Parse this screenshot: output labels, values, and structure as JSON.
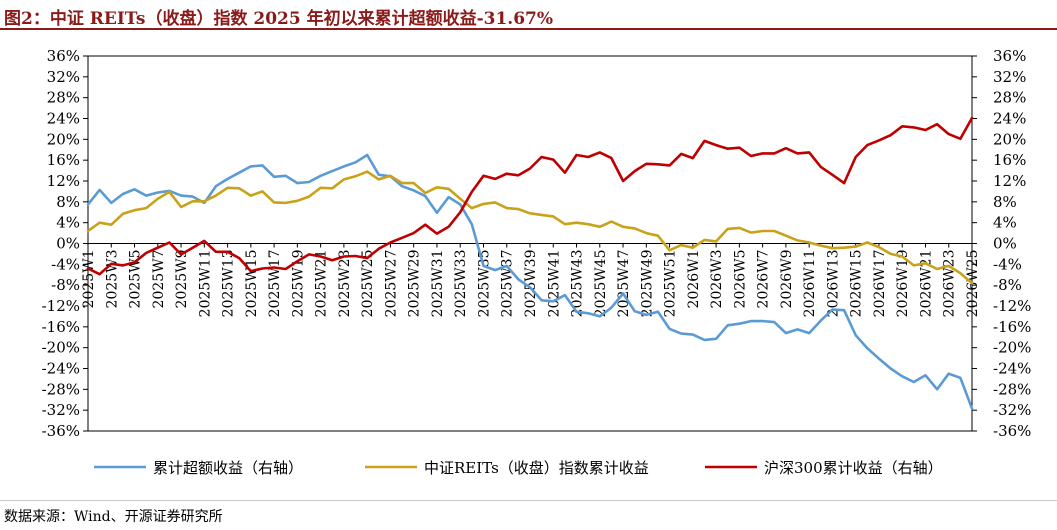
{
  "title": "图2：中证 REITs（收盘）指数 2025 年初以来累计超额收益-31.67%",
  "source": "数据来源：Wind、开源证券研究所",
  "chart_data": {
    "type": "line",
    "x": [
      "2025W1",
      "2025W2",
      "2025W3",
      "2025W4",
      "2025W5",
      "2025W6",
      "2025W7",
      "2025W8",
      "2025W9",
      "2025W10",
      "2025W11",
      "2025W12",
      "2025W13",
      "2025W14",
      "2025W15",
      "2025W16",
      "2025W17",
      "2025W18",
      "2025W19",
      "2025W20",
      "2025W21",
      "2025W22",
      "2025W23",
      "2025W24",
      "2025W25",
      "2025W26",
      "2025W27",
      "2025W28",
      "2025W29",
      "2025W30",
      "2025W31",
      "2025W32",
      "2025W33",
      "2025W34",
      "2025W35",
      "2025W36",
      "2025W37",
      "2025W38",
      "2025W39",
      "2025W40",
      "2025W41",
      "2025W42",
      "2025W43",
      "2025W44",
      "2025W45",
      "2025W46",
      "2025W47",
      "2025W48",
      "2025W49",
      "2025W50",
      "2025W51",
      "2025W52",
      "2026W1",
      "2026W2",
      "2026W3",
      "2026W4",
      "2026W5",
      "2026W6",
      "2026W7",
      "2026W8",
      "2026W9",
      "2026W10",
      "2026W11",
      "2026W12",
      "2026W13",
      "2026W14",
      "2026W15",
      "2026W16",
      "2026W17",
      "2026W18",
      "2026W19",
      "2026W20",
      "2026W21",
      "2026W22",
      "2026W23",
      "2026W24",
      "2026W25"
    ],
    "tick_labels": [
      "2025W1",
      "2025W3",
      "2025W5",
      "2025W7",
      "2025W9",
      "2025W11",
      "2025W13",
      "2025W15",
      "2025W17",
      "2025W19",
      "2025W21",
      "2025W23",
      "2025W25",
      "2025W27",
      "2025W29",
      "2025W31",
      "2025W33",
      "2025W35",
      "2025W37",
      "2025W39",
      "2025W41",
      "2025W43",
      "2025W45",
      "2025W47",
      "2025W49",
      "2025W51",
      "2026W1",
      "2026W3",
      "2026W5",
      "2026W7",
      "2026W9",
      "2026W11",
      "2026W13",
      "2026W15",
      "2026W17",
      "2026W19",
      "2026W21",
      "2026W23",
      "2026W25"
    ],
    "y_ticks": [
      "36%",
      "32%",
      "28%",
      "24%",
      "20%",
      "16%",
      "12%",
      "8%",
      "4%",
      "0%",
      "-4%",
      "-8%",
      "-12%",
      "-16%",
      "-20%",
      "-24%",
      "-28%",
      "-32%",
      "-36%"
    ],
    "ylim": [
      -36,
      36
    ],
    "legend_position": "bottom",
    "series": [
      {
        "name": "累计超额收益（右轴）",
        "color": "#5B9BD5",
        "values": [
          7.5,
          10.3,
          7.8,
          9.5,
          10.4,
          9.2,
          9.8,
          10.1,
          9.2,
          9.0,
          7.8,
          11.0,
          12.4,
          13.6,
          14.8,
          15.0,
          12.8,
          13.0,
          11.6,
          11.8,
          13.0,
          13.9,
          14.8,
          15.6,
          17.0,
          13.2,
          12.9,
          11.0,
          10.2,
          9.1,
          5.9,
          8.9,
          7.5,
          3.7,
          -4.3,
          -5.1,
          -4.3,
          -6.9,
          -8.4,
          -10.9,
          -11.1,
          -9.9,
          -13.1,
          -13.4,
          -14.0,
          -12.3,
          -9.6,
          -13.0,
          -13.7,
          -13.1,
          -16.4,
          -17.3,
          -17.5,
          -18.5,
          -18.3,
          -15.7,
          -15.4,
          -14.9,
          -14.9,
          -15.1,
          -17.2,
          -16.5,
          -17.2,
          -14.8,
          -12.7,
          -12.8,
          -17.6,
          -20.1,
          -22.1,
          -24.0,
          -25.5,
          -26.6,
          -25.3,
          -28.0,
          -25.0,
          -25.8,
          -31.7
        ]
      },
      {
        "name": "中证REITs（收盘）指数累计收益",
        "color": "#C9A21A",
        "values": [
          2.4,
          4.0,
          3.6,
          5.7,
          6.4,
          6.8,
          8.6,
          9.9,
          7.0,
          8.1,
          8.1,
          9.2,
          10.7,
          10.6,
          9.2,
          10.0,
          7.9,
          7.8,
          8.2,
          9.0,
          10.7,
          10.6,
          12.3,
          12.9,
          13.8,
          12.3,
          13.0,
          11.6,
          11.6,
          9.7,
          10.8,
          10.5,
          8.6,
          6.8,
          7.6,
          7.9,
          6.8,
          6.6,
          5.8,
          5.5,
          5.2,
          3.7,
          4.0,
          3.7,
          3.2,
          4.2,
          3.2,
          2.9,
          2.0,
          1.5,
          -1.3,
          -0.3,
          -0.8,
          0.7,
          0.4,
          2.8,
          3.0,
          2.1,
          2.4,
          2.4,
          1.5,
          0.6,
          0.2,
          -0.4,
          -0.9,
          -0.8,
          -0.6,
          0.2,
          -0.7,
          -2.0,
          -2.5,
          -4.2,
          -3.8,
          -4.9,
          -4.3,
          -5.7,
          -7.6
        ]
      },
      {
        "name": "沪深300累计收益（右轴）",
        "color": "#C00000",
        "values": [
          -4.8,
          -5.9,
          -3.9,
          -4.2,
          -3.6,
          -1.8,
          -0.8,
          0.2,
          -2.1,
          -0.8,
          0.5,
          -1.6,
          -1.6,
          -2.8,
          -5.3,
          -4.8,
          -4.6,
          -4.9,
          -3.4,
          -2.1,
          -2.5,
          -3.2,
          -2.5,
          -2.4,
          -2.8,
          -1.0,
          0.2,
          1.1,
          2.0,
          3.6,
          1.9,
          3.2,
          6.0,
          9.9,
          13.0,
          12.4,
          13.4,
          13.1,
          14.4,
          16.6,
          16.1,
          13.6,
          17.0,
          16.6,
          17.5,
          16.4,
          12.0,
          13.9,
          15.3,
          15.2,
          15.0,
          17.2,
          16.4,
          19.7,
          18.9,
          18.2,
          18.4,
          16.8,
          17.3,
          17.3,
          18.3,
          17.3,
          17.5,
          14.7,
          13.2,
          11.6,
          16.6,
          18.9,
          19.8,
          20.8,
          22.5,
          22.3,
          21.8,
          22.9,
          21.0,
          20.1,
          24.1
        ]
      }
    ]
  }
}
